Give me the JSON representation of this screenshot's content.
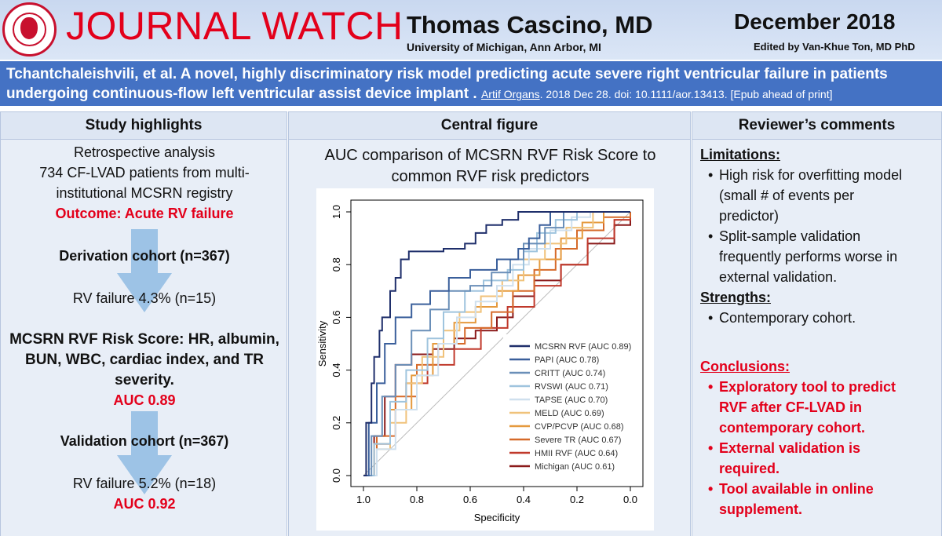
{
  "header": {
    "title": "JOURNAL WATCH",
    "author": "Thomas Cascino, MD",
    "affiliation": "University of Michigan, Ann Arbor, MI",
    "date": "December 2018",
    "editor": "Edited by Van-Khue Ton, MD PhD",
    "logo_color": "#c8102e"
  },
  "article": {
    "title": "Tchantchaleishvili, et al. A novel, highly discriminatory risk model predicting acute severe right ventricular failure in patients undergoing continuous-flow left ventricular assist device implant .",
    "journal": "Artif Organs",
    "citation": ". 2018 Dec 28. doi: 10.1111/aor.13413. [Epub ahead of print]"
  },
  "highlights": {
    "heading": "Study highlights",
    "line1": "Retrospective analysis",
    "line2": "734 CF-LVAD patients from multi-",
    "line3": "institutional MCSRN registry",
    "outcome": "Outcome: Acute RV failure",
    "derivation": "Derivation cohort (n=367)",
    "rv_failure_1": "RV failure 4.3% (n=15)",
    "score_1": "MCSRN RVF Risk Score: HR, albumin,",
    "score_2": "BUN, WBC, cardiac index, and TR",
    "score_3": "severity.",
    "auc1": "AUC 0.89",
    "validation": "Validation cohort (n=367)",
    "rv_failure_2": "RV failure 5.2% (n=18)",
    "auc2": "AUC 0.92"
  },
  "central": {
    "heading": "Central figure",
    "title_line1": "AUC comparison of MCSRN RVF Risk Score to",
    "title_line2": "common RVF risk predictors"
  },
  "reviewer": {
    "heading": "Reviewer’s comments",
    "limitations": "Limitations:",
    "lim1_a": "High risk for overfitting model",
    "lim1_b": "(small # of events per",
    "lim1_c": "predictor)",
    "lim2_a": "Split-sample validation",
    "lim2_b": "frequently performs worse in",
    "lim2_c": "external validation.",
    "strengths": "Strengths:",
    "str1": "Contemporary cohort.",
    "conclusions": "Conclusions:",
    "con1_a": "Exploratory tool to predict",
    "con1_b": "RVF after CF-LVAD in",
    "con1_c": "contemporary cohort.",
    "con2_a": "External validation is",
    "con2_b": "required.",
    "con3_a": "Tool available in online",
    "con3_b": "supplement."
  },
  "chart_data": {
    "type": "line",
    "title": "AUC comparison of MCSRN RVF Risk Score to common RVF risk predictors",
    "xlabel": "Specificity",
    "ylabel": "Sensitivity",
    "xlim": [
      1.0,
      0.0
    ],
    "ylim": [
      0.0,
      1.0
    ],
    "xticks": [
      "1.0",
      "0.8",
      "0.6",
      "0.4",
      "0.2",
      "0.0"
    ],
    "yticks": [
      "0.0",
      "0.2",
      "0.4",
      "0.6",
      "0.8",
      "1.0"
    ],
    "legend_position": "bottom-right",
    "series": [
      {
        "name": "MCSRN RVF (AUC 0.89)",
        "color": "#1f2f6b",
        "points": [
          [
            1.0,
            0.0
          ],
          [
            0.99,
            0.2
          ],
          [
            0.97,
            0.35
          ],
          [
            0.96,
            0.45
          ],
          [
            0.94,
            0.55
          ],
          [
            0.93,
            0.6
          ],
          [
            0.9,
            0.7
          ],
          [
            0.88,
            0.75
          ],
          [
            0.86,
            0.82
          ],
          [
            0.83,
            0.85
          ],
          [
            0.78,
            0.85
          ],
          [
            0.7,
            0.86
          ],
          [
            0.62,
            0.88
          ],
          [
            0.58,
            0.92
          ],
          [
            0.54,
            0.95
          ],
          [
            0.48,
            0.97
          ],
          [
            0.42,
            1.0
          ],
          [
            0.0,
            1.0
          ]
        ]
      },
      {
        "name": "PAPI (AUC 0.78)",
        "color": "#3a5f9b",
        "points": [
          [
            1.0,
            0.0
          ],
          [
            0.98,
            0.2
          ],
          [
            0.95,
            0.35
          ],
          [
            0.92,
            0.5
          ],
          [
            0.88,
            0.6
          ],
          [
            0.82,
            0.65
          ],
          [
            0.75,
            0.7
          ],
          [
            0.68,
            0.75
          ],
          [
            0.6,
            0.78
          ],
          [
            0.5,
            0.82
          ],
          [
            0.42,
            0.86
          ],
          [
            0.38,
            0.9
          ],
          [
            0.34,
            0.95
          ],
          [
            0.3,
            1.0
          ],
          [
            0.0,
            1.0
          ]
        ]
      },
      {
        "name": "CRITT (AUC 0.74)",
        "color": "#6a8fb8",
        "points": [
          [
            1.0,
            0.0
          ],
          [
            0.97,
            0.15
          ],
          [
            0.93,
            0.3
          ],
          [
            0.88,
            0.42
          ],
          [
            0.82,
            0.55
          ],
          [
            0.75,
            0.63
          ],
          [
            0.68,
            0.7
          ],
          [
            0.6,
            0.72
          ],
          [
            0.52,
            0.77
          ],
          [
            0.45,
            0.82
          ],
          [
            0.4,
            0.88
          ],
          [
            0.32,
            0.94
          ],
          [
            0.25,
            1.0
          ],
          [
            0.0,
            1.0
          ]
        ]
      },
      {
        "name": "RVSWI (AUC 0.71)",
        "color": "#9fc4de",
        "points": [
          [
            1.0,
            0.0
          ],
          [
            0.96,
            0.12
          ],
          [
            0.9,
            0.28
          ],
          [
            0.84,
            0.4
          ],
          [
            0.76,
            0.52
          ],
          [
            0.7,
            0.62
          ],
          [
            0.62,
            0.7
          ],
          [
            0.55,
            0.74
          ],
          [
            0.46,
            0.78
          ],
          [
            0.4,
            0.85
          ],
          [
            0.35,
            0.92
          ],
          [
            0.28,
            0.97
          ],
          [
            0.2,
            1.0
          ],
          [
            0.0,
            1.0
          ]
        ]
      },
      {
        "name": "TAPSE (AUC 0.70)",
        "color": "#cfe0ee",
        "points": [
          [
            1.0,
            0.0
          ],
          [
            0.95,
            0.1
          ],
          [
            0.88,
            0.25
          ],
          [
            0.8,
            0.38
          ],
          [
            0.72,
            0.5
          ],
          [
            0.65,
            0.6
          ],
          [
            0.58,
            0.66
          ],
          [
            0.5,
            0.72
          ],
          [
            0.44,
            0.8
          ],
          [
            0.38,
            0.86
          ],
          [
            0.3,
            0.93
          ],
          [
            0.22,
            0.98
          ],
          [
            0.15,
            1.0
          ],
          [
            0.0,
            1.0
          ]
        ]
      },
      {
        "name": "MELD (AUC 0.69)",
        "color": "#f0c27a",
        "points": [
          [
            1.0,
            0.0
          ],
          [
            0.95,
            0.1
          ],
          [
            0.9,
            0.2
          ],
          [
            0.84,
            0.35
          ],
          [
            0.78,
            0.45
          ],
          [
            0.7,
            0.55
          ],
          [
            0.64,
            0.62
          ],
          [
            0.56,
            0.68
          ],
          [
            0.48,
            0.74
          ],
          [
            0.4,
            0.82
          ],
          [
            0.32,
            0.88
          ],
          [
            0.24,
            0.94
          ],
          [
            0.14,
            1.0
          ],
          [
            0.0,
            1.0
          ]
        ]
      },
      {
        "name": "CVP/PCVP (AUC 0.68)",
        "color": "#e59a3e",
        "points": [
          [
            1.0,
            0.0
          ],
          [
            0.96,
            0.12
          ],
          [
            0.9,
            0.25
          ],
          [
            0.82,
            0.38
          ],
          [
            0.74,
            0.5
          ],
          [
            0.66,
            0.58
          ],
          [
            0.58,
            0.64
          ],
          [
            0.5,
            0.7
          ],
          [
            0.42,
            0.76
          ],
          [
            0.34,
            0.82
          ],
          [
            0.26,
            0.9
          ],
          [
            0.18,
            0.96
          ],
          [
            0.1,
            1.0
          ],
          [
            0.0,
            1.0
          ]
        ]
      },
      {
        "name": "Severe TR (AUC 0.67)",
        "color": "#d66a2a",
        "points": [
          [
            1.0,
            0.0
          ],
          [
            0.95,
            0.15
          ],
          [
            0.88,
            0.3
          ],
          [
            0.8,
            0.42
          ],
          [
            0.72,
            0.5
          ],
          [
            0.62,
            0.56
          ],
          [
            0.52,
            0.62
          ],
          [
            0.44,
            0.7
          ],
          [
            0.36,
            0.78
          ],
          [
            0.28,
            0.86
          ],
          [
            0.2,
            0.93
          ],
          [
            0.1,
            0.98
          ],
          [
            0.0,
            1.0
          ]
        ]
      },
      {
        "name": "HMII RVF (AUC 0.64)",
        "color": "#c0392b",
        "points": [
          [
            1.0,
            0.0
          ],
          [
            0.95,
            0.12
          ],
          [
            0.9,
            0.25
          ],
          [
            0.84,
            0.35
          ],
          [
            0.76,
            0.42
          ],
          [
            0.66,
            0.48
          ],
          [
            0.56,
            0.56
          ],
          [
            0.46,
            0.64
          ],
          [
            0.36,
            0.72
          ],
          [
            0.26,
            0.8
          ],
          [
            0.16,
            0.9
          ],
          [
            0.06,
            0.97
          ],
          [
            0.0,
            1.0
          ]
        ]
      },
      {
        "name": "Michigan (AUC 0.61)",
        "color": "#8b1a1a",
        "points": [
          [
            1.0,
            0.0
          ],
          [
            0.96,
            0.15
          ],
          [
            0.92,
            0.3
          ],
          [
            0.88,
            0.42
          ],
          [
            0.82,
            0.46
          ],
          [
            0.74,
            0.48
          ],
          [
            0.66,
            0.52
          ],
          [
            0.58,
            0.55
          ],
          [
            0.5,
            0.6
          ],
          [
            0.44,
            0.68
          ],
          [
            0.36,
            0.74
          ],
          [
            0.26,
            0.8
          ],
          [
            0.16,
            0.88
          ],
          [
            0.06,
            0.95
          ],
          [
            0.0,
            1.0
          ]
        ]
      },
      {
        "name": "",
        "color": "#bbbbbb",
        "points": [
          [
            1.0,
            0.0
          ],
          [
            0.0,
            1.0
          ]
        ],
        "reference": true
      }
    ]
  }
}
